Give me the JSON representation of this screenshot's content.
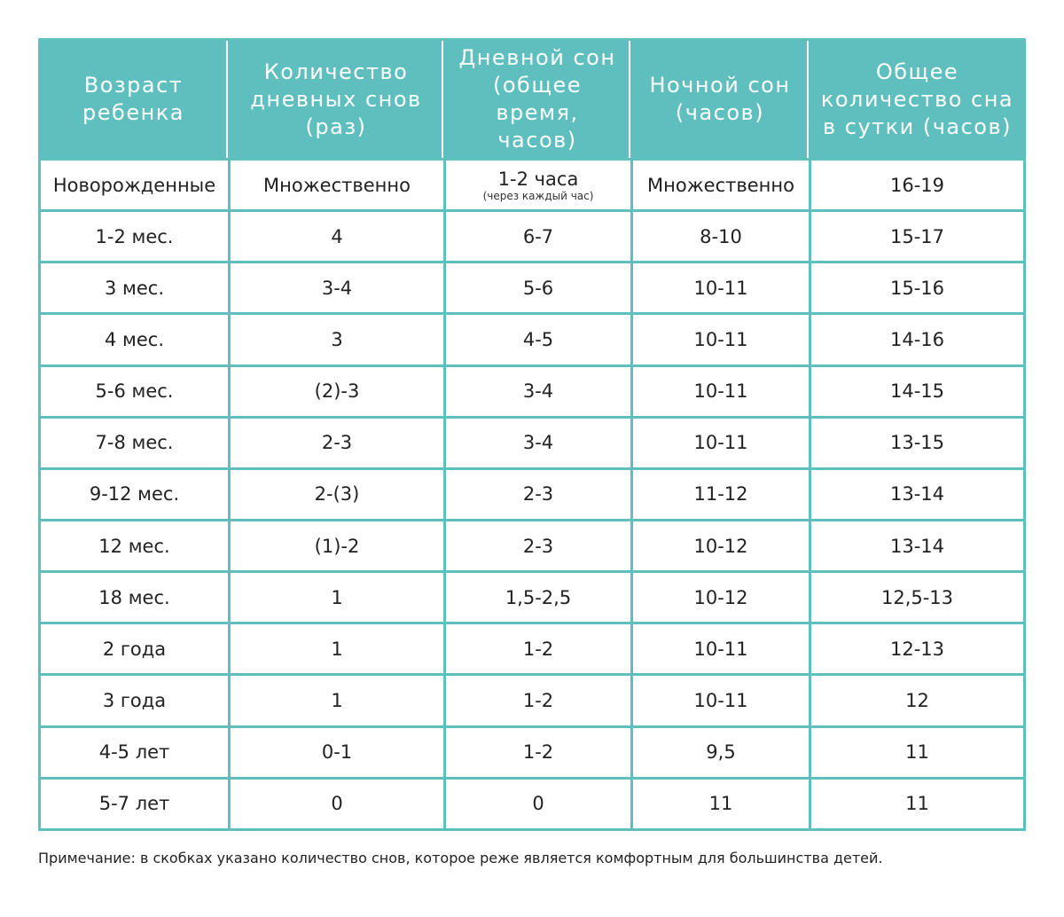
{
  "table": {
    "headers": [
      [
        "Возраст",
        "ребенка"
      ],
      [
        "Количество",
        "дневных снов",
        "(раз)"
      ],
      [
        "Дневной сон",
        "(общее время,",
        "часов)"
      ],
      [
        "Ночной сон",
        "(часов)"
      ],
      [
        "Общее",
        "количество сна",
        "в сутки (часов)"
      ]
    ],
    "rows": [
      {
        "age": "Новорожденные",
        "naps": "Множественно",
        "day_sleep": "1-2 часа",
        "day_sleep_note": "(через каждый час)",
        "night_sleep": "Множественно",
        "total": "16-19"
      },
      {
        "age": "1-2 мес.",
        "naps": "4",
        "day_sleep": "6-7",
        "night_sleep": "8-10",
        "total": "15-17"
      },
      {
        "age": "3 мес.",
        "naps": "3-4",
        "day_sleep": "5-6",
        "night_sleep": "10-11",
        "total": "15-16"
      },
      {
        "age": "4 мес.",
        "naps": "3",
        "day_sleep": "4-5",
        "night_sleep": "10-11",
        "total": "14-16"
      },
      {
        "age": "5-6 мес.",
        "naps": "(2)-3",
        "day_sleep": "3-4",
        "night_sleep": "10-11",
        "total": "14-15"
      },
      {
        "age": "7-8 мес.",
        "naps": "2-3",
        "day_sleep": "3-4",
        "night_sleep": "10-11",
        "total": "13-15"
      },
      {
        "age": "9-12 мес.",
        "naps": "2-(3)",
        "day_sleep": "2-3",
        "night_sleep": "11-12",
        "total": "13-14"
      },
      {
        "age": "12 мес.",
        "naps": "(1)-2",
        "day_sleep": "2-3",
        "night_sleep": "10-12",
        "total": "13-14"
      },
      {
        "age": "18 мес.",
        "naps": "1",
        "day_sleep": "1,5-2,5",
        "night_sleep": "10-12",
        "total": "12,5-13"
      },
      {
        "age": "2 года",
        "naps": "1",
        "day_sleep": "1-2",
        "night_sleep": "10-11",
        "total": "12-13"
      },
      {
        "age": "3 года",
        "naps": "1",
        "day_sleep": "1-2",
        "night_sleep": "10-11",
        "total": "12"
      },
      {
        "age": "4-5 лет",
        "naps": "0-1",
        "day_sleep": "1-2",
        "night_sleep": "9,5",
        "total": "11"
      },
      {
        "age": "5-7 лет",
        "naps": "0",
        "day_sleep": "0",
        "night_sleep": "11",
        "total": "11"
      }
    ]
  },
  "footnote": "Примечание: в скобках указано количество снов, которое реже является комфортным для большинства детей.",
  "colors": {
    "teal": "#5fbfbe",
    "cell_background": "#ffffff",
    "text": "#222222"
  }
}
